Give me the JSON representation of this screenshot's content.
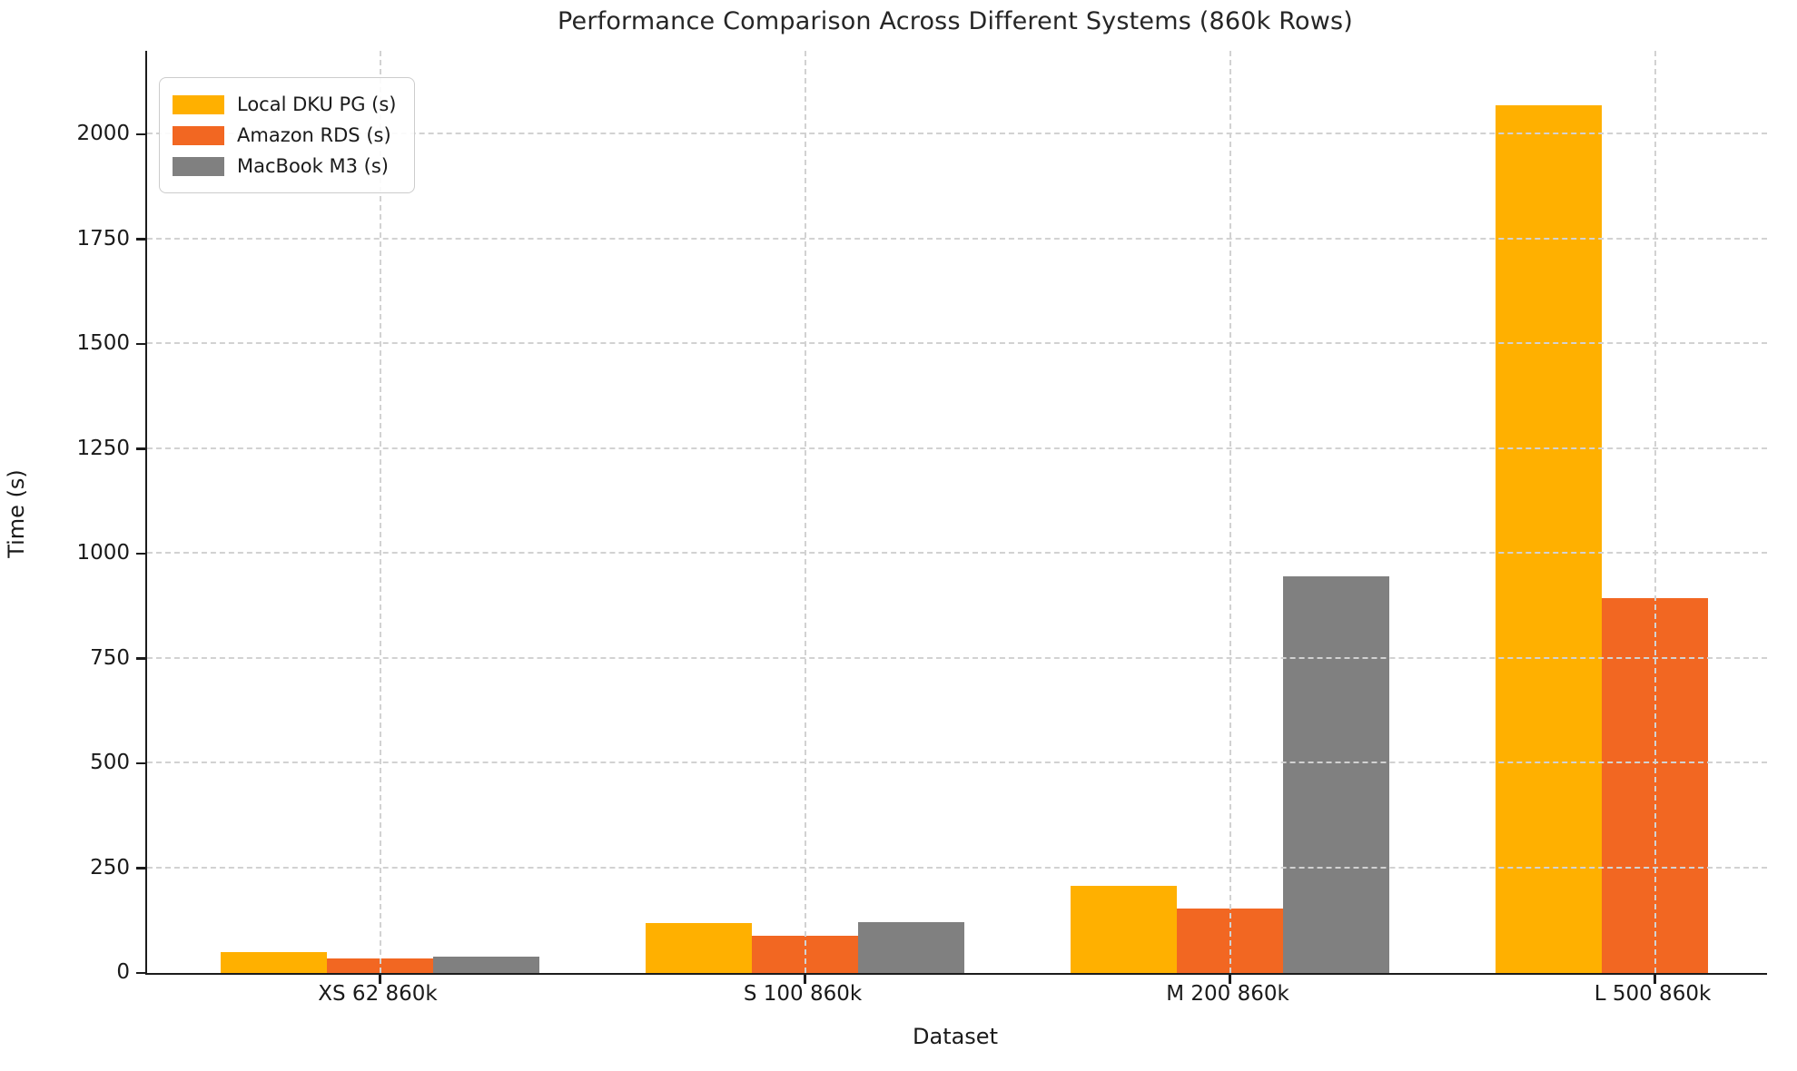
{
  "chart_data": {
    "type": "bar",
    "title": "Performance Comparison Across Different Systems (860k Rows)",
    "xlabel": "Dataset",
    "ylabel": "Time (s)",
    "categories": [
      "XS 62 860k",
      "S 100 860k",
      "M 200 860k",
      "L 500 860k"
    ],
    "series": [
      {
        "name": "Local DKU PG (s)",
        "color": "#FFB000",
        "values": [
          49,
          119,
          208,
          2070
        ]
      },
      {
        "name": "Amazon RDS (s)",
        "color": "#F26722",
        "values": [
          34,
          89,
          154,
          895
        ]
      },
      {
        "name": "MacBook M3 (s)",
        "color": "#808080",
        "values": [
          39,
          122,
          946,
          0
        ]
      }
    ],
    "yticks": [
      0,
      250,
      500,
      750,
      1000,
      1250,
      1500,
      1750,
      2000
    ],
    "ylim": [
      0,
      2200
    ],
    "grid": true,
    "grid_style": "dashed",
    "grid_color": "#d2d2d2",
    "legend_position": "upper left",
    "background_color": "#ffffff",
    "spine_color": "#1c1c1c"
  }
}
